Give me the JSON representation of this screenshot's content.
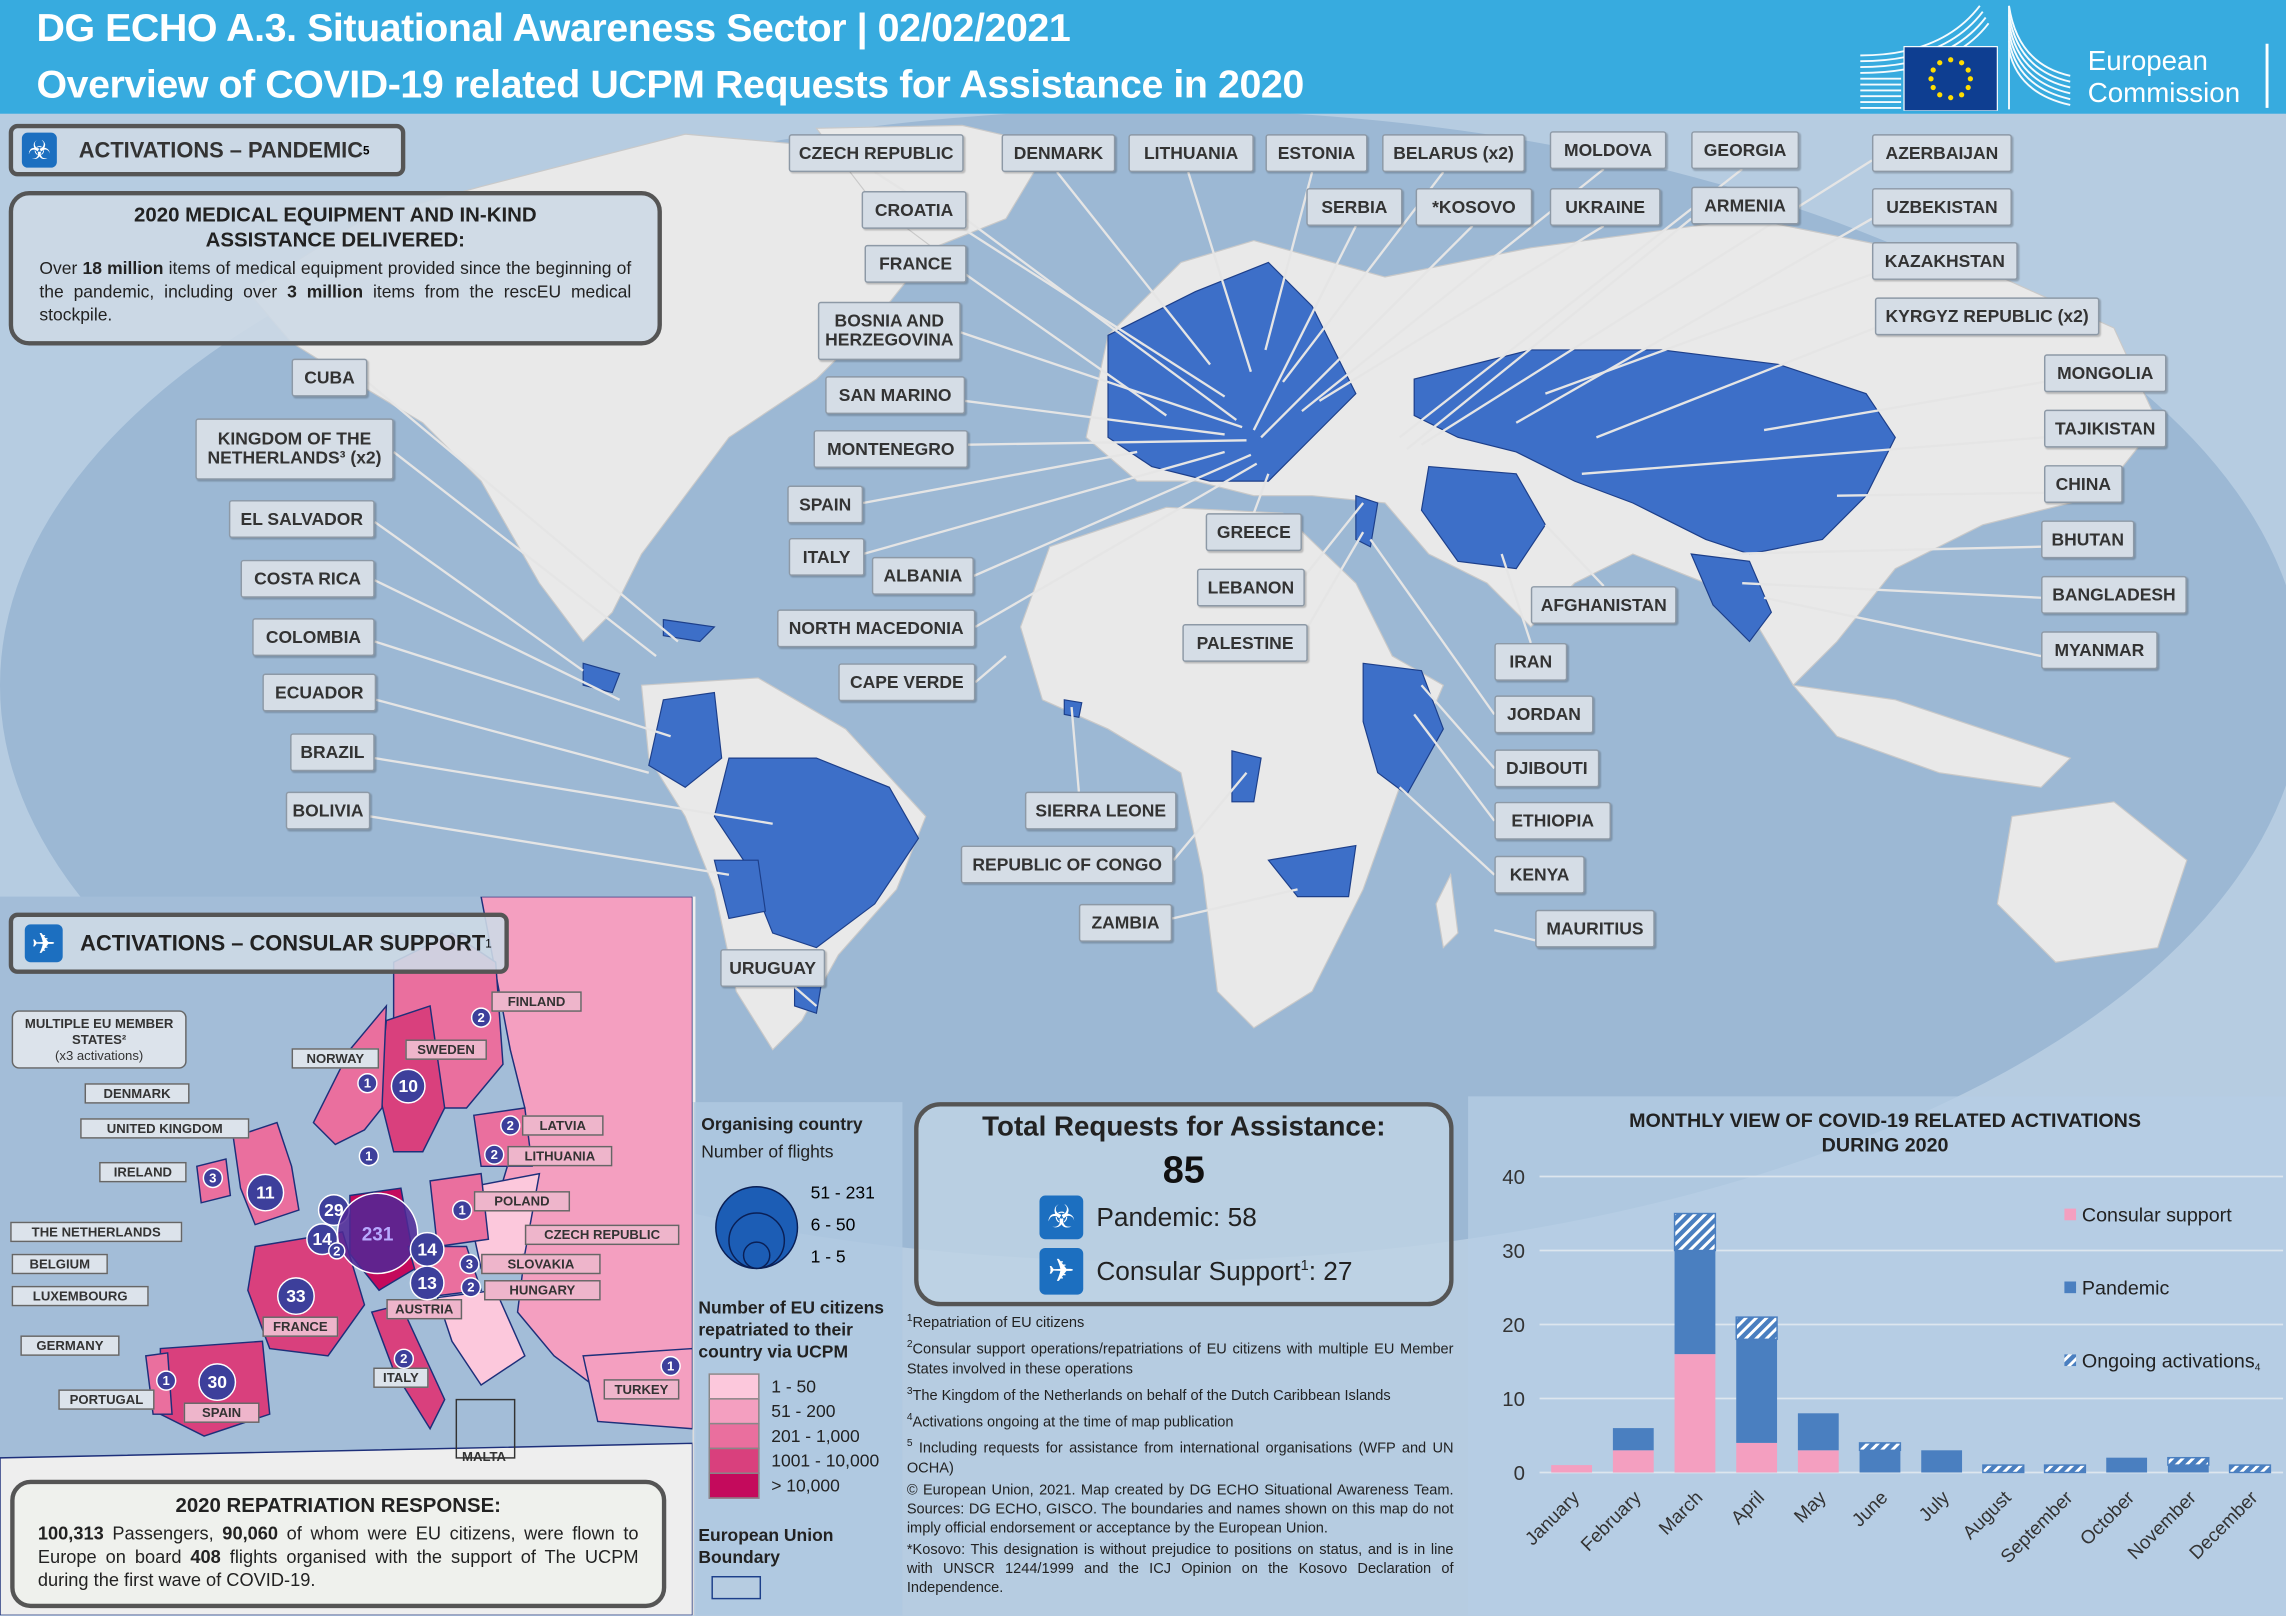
{
  "header": {
    "title_line1": "DG ECHO A.3. Situational Awareness Sector | 02/02/2021",
    "title_line2": "Overview of COVID-19 related UCPM Requests for Assistance in 2020",
    "logo_text_1": "European",
    "logo_text_2": "Commission"
  },
  "pandemic": {
    "section_title": "ACTIVATIONS – PANDEMIC",
    "section_sup": "5",
    "icon": "biohazard-icon",
    "medical_box": {
      "title_1": "2020 MEDICAL EQUIPMENT  AND IN-KIND",
      "title_2": "ASSISTANCE DELIVERED:",
      "text_a": "Over ",
      "bold_a": "18 million",
      "text_b": " items of medical equipment provided since the beginning of the pandemic, including over ",
      "bold_b": "3 million",
      "text_c": " items from the rescEU medical stockpile."
    },
    "countries": [
      "CZECH REPUBLIC",
      "DENMARK",
      "LITHUANIA",
      "ESTONIA",
      "BELARUS (x2)",
      "MOLDOVA",
      "GEORGIA",
      "AZERBAIJAN",
      "CROATIA",
      "SERBIA",
      "*KOSOVO",
      "UKRAINE",
      "ARMENIA",
      "UZBEKISTAN",
      "FRANCE",
      "KAZAKHSTAN",
      "BOSNIA AND HERZEGOVINA",
      "KYRGYZ REPUBLIC (x2)",
      "CUBA",
      "MONGOLIA",
      "SAN MARINO",
      "KINGDOM OF THE NETHERLANDS³ (x2)",
      "TAJIKISTAN",
      "MONTENEGRO",
      "CHINA",
      "SPAIN",
      "EL SALVADOR",
      "GREECE",
      "BHUTAN",
      "ITALY",
      "ALBANIA",
      "COSTA RICA",
      "LEBANON",
      "AFGHANISTAN",
      "BANGLADESH",
      "COLOMBIA",
      "NORTH MACEDONIA",
      "PALESTINE",
      "MYANMAR",
      "IRAN",
      "CAPE VERDE",
      "ECUADOR",
      "JORDAN",
      "BRAZIL",
      "DJIBOUTI",
      "SIERRA LEONE",
      "BOLIVIA",
      "ETHIOPIA",
      "REPUBLIC OF CONGO",
      "KENYA",
      "ZAMBIA",
      "MAURITIUS",
      "URUGUAY"
    ]
  },
  "consular": {
    "section_title": "ACTIVATIONS – CONSULAR  SUPPORT",
    "section_sup": "1",
    "icon": "airplane-icon",
    "multiple_label_1": "MULTIPLE EU MEMBER",
    "multiple_label_2": "STATES²",
    "multiple_label_3": "(x3 activations)",
    "labels": [
      "FINLAND",
      "NORWAY",
      "SWEDEN",
      "DENMARK",
      "UNITED KINGDOM",
      "IRELAND",
      "LATVIA",
      "LITHUANIA",
      "POLAND",
      "THE NETHERLANDS",
      "CZECH REPUBLIC",
      "BELGIUM",
      "SLOVAKIA",
      "LUXEMBOURG",
      "HUNGARY",
      "AUSTRIA",
      "FRANCE",
      "GERMANY",
      "ITALY",
      "TURKEY",
      "PORTUGAL",
      "SPAIN",
      "MALTA"
    ],
    "flights": [
      {
        "country": "Finland",
        "flights": 2
      },
      {
        "country": "Norway",
        "flights": 1
      },
      {
        "country": "Sweden",
        "flights": 10
      },
      {
        "country": "Denmark",
        "flights": 1
      },
      {
        "country": "Latvia",
        "flights": 2
      },
      {
        "country": "Lithuania",
        "flights": 2
      },
      {
        "country": "Ireland",
        "flights": 3
      },
      {
        "country": "United Kingdom",
        "flights": 11
      },
      {
        "country": "Poland",
        "flights": 1
      },
      {
        "country": "The Netherlands",
        "flights": 29
      },
      {
        "country": "Germany",
        "flights": 231
      },
      {
        "country": "Belgium",
        "flights": 14
      },
      {
        "country": "Luxembourg",
        "flights": 2
      },
      {
        "country": "Czech Republic",
        "flights": 14
      },
      {
        "country": "Slovakia",
        "flights": 3
      },
      {
        "country": "Austria",
        "flights": 13
      },
      {
        "country": "Hungary",
        "flights": 2
      },
      {
        "country": "France",
        "flights": 33
      },
      {
        "country": "Italy",
        "flights": 2
      },
      {
        "country": "Spain",
        "flights": 30
      },
      {
        "country": "Portugal",
        "flights": 1
      },
      {
        "country": "Turkey",
        "flights": 1
      }
    ],
    "repatriation": {
      "title": "2020 REPATRIATION  RESPONSE:",
      "n1": "100,313",
      "t1": " Passengers, ",
      "n2": "90,060",
      "t2": " of whom were EU citizens, were flown to Europe on board ",
      "n3": "408",
      "t3": " flights organised with the support of The UCPM during the first wave of COVID-19."
    }
  },
  "legend": {
    "organising_title": "Organising country",
    "flights_subtitle": "Number of flights",
    "flight_ranges": [
      "51 - 231",
      "6 - 50",
      "1 - 5"
    ],
    "citizens_title": "Number of EU citizens repatriated to their country via UCPM",
    "citizen_ranges": [
      {
        "label": "1 - 50",
        "color": "#fcc8dc"
      },
      {
        "label": "51 - 200",
        "color": "#f49fc0"
      },
      {
        "label": "201 - 1,000",
        "color": "#ea6f9e"
      },
      {
        "label": "1001 - 10,000",
        "color": "#d9407d"
      },
      {
        "label": "> 10,000",
        "color": "#c40a5c"
      }
    ],
    "eu_boundary": "European Union Boundary"
  },
  "totals": {
    "title": "Total Requests for Assistance:",
    "total": "85",
    "pandemic_label": "Pandemic: 58",
    "consular_label": "Consular Support",
    "consular_sup": "1",
    "consular_value": ": 27"
  },
  "footnotes": [
    {
      "sup": "1",
      "text": "Repatriation of EU citizens"
    },
    {
      "sup": "2",
      "text": "Consular support operations/repatriations of EU citizens with multiple EU Member States involved in these operations"
    },
    {
      "sup": "3",
      "text": "The Kingdom of the Netherlands on behalf of the Dutch Caribbean Islands"
    },
    {
      "sup": "4",
      "text": "Activations ongoing at the time of map publication"
    },
    {
      "sup": "5",
      "text": " Including requests for assistance from international organisations (WFP and UN OCHA)"
    },
    {
      "sup": "",
      "text": "© European Union, 2021. Map created by DG ECHO Situational Awareness Team. Sources: DG ECHO, GISCO. The boundaries and names shown on this map do not imply official endorsement or acceptance by the European Union."
    },
    {
      "sup": "",
      "text": "*Kosovo: This designation is without prejudice to positions on status, and is in line with UNSCR 1244/1999 and the ICJ Opinion on the Kosovo Declaration of Independence."
    }
  ],
  "colors": {
    "header": "#37abdf",
    "pandemic_country": "#3d6fc8",
    "consular_bar": "#f49fc0",
    "pandemic_bar": "#4a7fc0",
    "icon_blue": "#1c6fc0"
  },
  "chart_data": {
    "type": "bar",
    "stacked": true,
    "title": "MONTHLY VIEW OF COVID-19 RELATED  ACTIVATIONS DURING  2020",
    "categories": [
      "January",
      "February",
      "March",
      "April",
      "May",
      "June",
      "July",
      "August",
      "September",
      "October",
      "November",
      "December"
    ],
    "series": [
      {
        "name": "Consular support",
        "values": [
          1,
          3,
          16,
          4,
          3,
          0,
          0,
          0,
          0,
          0,
          0,
          0
        ],
        "color": "#f49fc0"
      },
      {
        "name": "Pandemic",
        "values": [
          0,
          3,
          14,
          14,
          5,
          3,
          3,
          0,
          0,
          2,
          1,
          0
        ],
        "color": "#4a7fc0"
      },
      {
        "name": "Ongoing activations",
        "sup": "4",
        "values": [
          0,
          0,
          5,
          3,
          0,
          1,
          0,
          1,
          1,
          0,
          1,
          1
        ],
        "color": "hatched"
      }
    ],
    "yticks": [
      0,
      10,
      20,
      30,
      40
    ],
    "ylim": [
      0,
      40
    ],
    "grid": true,
    "legend_position": "right"
  }
}
